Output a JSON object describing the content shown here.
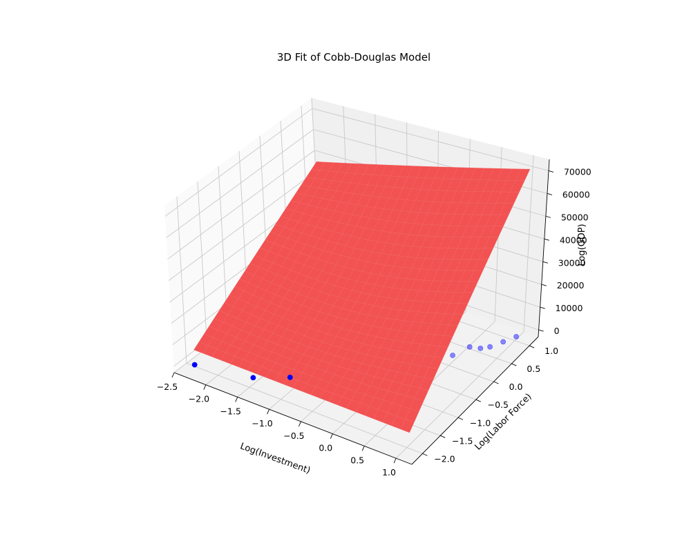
{
  "chart_data": {
    "type": "surface3d",
    "title": "3D Fit of Cobb-Douglas Model",
    "xlabel": "Log(Investment)",
    "ylabel": "Log(Labor Force)",
    "zlabel": "Log(GDP)",
    "xlim": [
      -2.5,
      1.25
    ],
    "ylim": [
      -2.3,
      1.25
    ],
    "zlim": [
      -3000,
      75000
    ],
    "x_ticks": [
      -2.5,
      -2.0,
      -1.5,
      -1.0,
      -0.5,
      0.0,
      0.5,
      1.0
    ],
    "x_tick_labels": [
      "−2.5",
      "−2.0",
      "−1.5",
      "−1.0",
      "−0.5",
      "0.0",
      "0.5",
      "1.0"
    ],
    "y_ticks": [
      -2.0,
      -1.5,
      -1.0,
      -0.5,
      0.0,
      0.5,
      1.0
    ],
    "y_tick_labels": [
      "−2.0",
      "−1.5",
      "−1.0",
      "−0.5",
      "0.0",
      "0.5",
      "1.0"
    ],
    "z_ticks": [
      0,
      10000,
      20000,
      30000,
      40000,
      50000,
      60000,
      70000
    ],
    "z_tick_labels": [
      "0",
      "10000",
      "20000",
      "30000",
      "40000",
      "50000",
      "60000",
      "70000"
    ],
    "grid": true,
    "series": [
      {
        "type": "scatter",
        "color": "#0000ff",
        "points": [
          {
            "x": -2.3,
            "y": -2.1,
            "z": 0
          },
          {
            "x": -1.5,
            "y": -1.9,
            "z": 0
          },
          {
            "x": -1.1,
            "y": -1.6,
            "z": 0
          },
          {
            "x": -0.3,
            "y": -1.0,
            "z": 0
          },
          {
            "x": 0.0,
            "y": -0.6,
            "z": 0
          },
          {
            "x": 0.1,
            "y": -0.5,
            "z": 0
          },
          {
            "x": 0.25,
            "y": -0.3,
            "z": 0
          },
          {
            "x": 0.35,
            "y": -0.15,
            "z": 0
          },
          {
            "x": 0.5,
            "y": 0.1,
            "z": 0
          },
          {
            "x": 0.6,
            "y": 0.4,
            "z": 0
          },
          {
            "x": 0.75,
            "y": 0.45,
            "z": 0
          },
          {
            "x": 0.85,
            "y": 0.55,
            "z": 0
          },
          {
            "x": 0.95,
            "y": 0.75,
            "z": 0
          },
          {
            "x": 1.05,
            "y": 0.95,
            "z": 0
          }
        ]
      },
      {
        "type": "surface",
        "color": "#ff0000",
        "opacity": 0.6,
        "x_range": [
          -2.3,
          1.1
        ],
        "y_range": [
          -2.1,
          1.0
        ],
        "corners": {
          "x_min_y_min": 7000,
          "x_max_y_min": 7000,
          "x_min_y_max": 50000,
          "x_max_y_max": 74000
        }
      }
    ]
  }
}
